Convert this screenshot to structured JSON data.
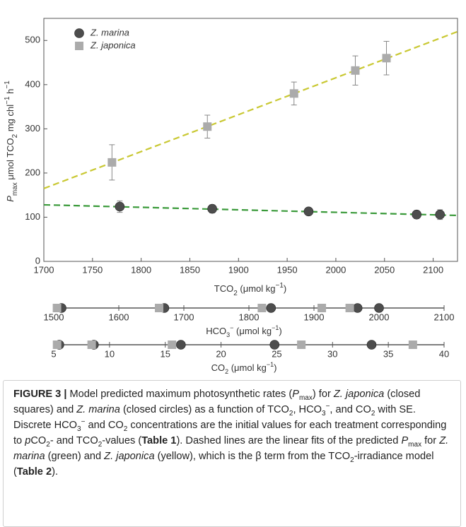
{
  "chart_data": [
    {
      "type": "scatter",
      "xlabel": [
        "TCO",
        "2",
        " (μmol kg",
        "−1",
        ")"
      ],
      "ylabel": [
        "P",
        "max",
        " μmol TCO",
        "2",
        " mg chl",
        "−1",
        " h",
        "−1"
      ],
      "xlim": [
        1700,
        2125
      ],
      "xticks": [
        1700,
        1750,
        1800,
        1850,
        1900,
        1950,
        2000,
        2050,
        2100
      ],
      "ylim": [
        0,
        550
      ],
      "yticks": [
        0,
        100,
        200,
        300,
        400,
        500
      ],
      "legend": "upper left",
      "series": [
        {
          "name": "Z. marina",
          "marker": "circle",
          "color": "#4d4d4d",
          "x": [
            1778,
            1873,
            1972,
            2083,
            2107
          ],
          "values": [
            124,
            119,
            113,
            106,
            106
          ],
          "errors": [
            13,
            9,
            7,
            9,
            11
          ]
        },
        {
          "name": "Z. japonica",
          "marker": "square",
          "color": "#ababab",
          "x": [
            1770,
            1868,
            1957,
            2020,
            2052
          ],
          "values": [
            224,
            305,
            380,
            432,
            460
          ],
          "errors": [
            40,
            26,
            26,
            33,
            38
          ]
        }
      ],
      "fits": [
        {
          "color": "#3a9a3a",
          "x": [
            1700,
            2125
          ],
          "values": [
            128,
            104
          ]
        },
        {
          "color": "#c9c832",
          "x": [
            1700,
            2125
          ],
          "values": [
            165,
            520
          ]
        }
      ]
    },
    {
      "type": "strip",
      "xlabel": [
        "HCO",
        "3",
        "−",
        " (μmol kg",
        "−1",
        ")"
      ],
      "xlim": [
        1500,
        2100
      ],
      "xticks": [
        1500,
        1600,
        1700,
        1800,
        1900,
        2000,
        2100
      ],
      "series": [
        {
          "marker": "circle",
          "color": "#4d4d4d",
          "x": [
            1512,
            1670,
            1834,
            1967,
            2000
          ]
        },
        {
          "marker": "square",
          "color": "#ababab",
          "x": [
            1505,
            1662,
            1820,
            1912,
            1955
          ]
        }
      ]
    },
    {
      "type": "strip",
      "xlabel": [
        "CO",
        "2",
        " (μmol kg",
        "−1",
        ")"
      ],
      "xlim": [
        5,
        40
      ],
      "xticks": [
        5,
        10,
        15,
        20,
        25,
        30,
        35,
        40
      ],
      "series": [
        {
          "marker": "circle",
          "color": "#4d4d4d",
          "x": [
            5.5,
            8.6,
            16.4,
            24.8,
            33.5
          ]
        },
        {
          "marker": "square",
          "color": "#ababab",
          "x": [
            5.3,
            8.4,
            15.6,
            27.2,
            37.2
          ]
        }
      ]
    }
  ],
  "caption": {
    "parts": [
      "FIGURE 3 |",
      " Model predicted maximum photosynthetic rates (",
      "P",
      "max",
      ") for ",
      "Z. japonica",
      " (closed squares) and ",
      "Z. marina",
      " (closed circles) as a function of TCO",
      "2",
      ", HCO",
      "3",
      "−",
      ", and CO",
      "2",
      " with SE. Discrete HCO",
      "3",
      "−",
      " and CO",
      "2",
      " concentrations are the initial values for each treatment corresponding to ",
      "p",
      "CO",
      "2",
      "- and TCO",
      "2",
      "-values (",
      "Table 1",
      "). Dashed lines are the linear fits of the predicted ",
      "P",
      "max",
      " for ",
      "Z. marina",
      " (green) and ",
      "Z. japonica",
      " (yellow), which is the β term from the TCO",
      "2",
      "-irradiance model (",
      "Table 2",
      ")."
    ]
  }
}
